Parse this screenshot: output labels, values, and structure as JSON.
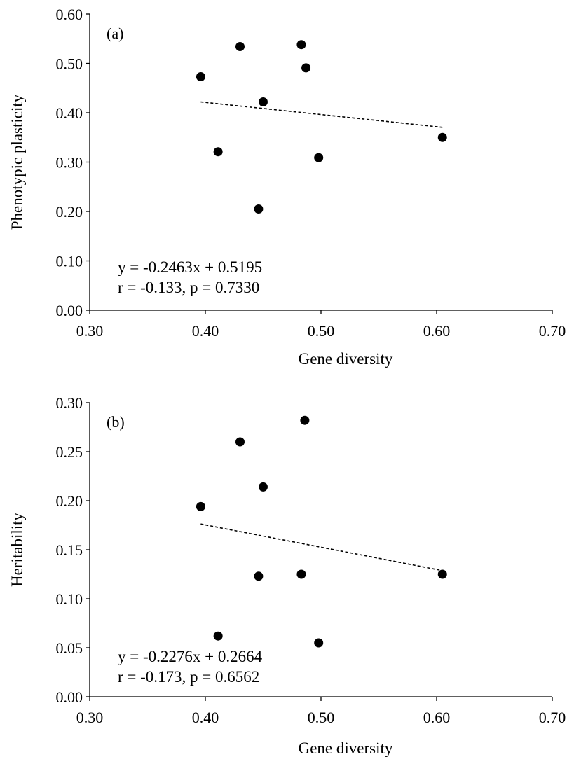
{
  "chart_data": [
    {
      "type": "scatter",
      "panel_label": "(a)",
      "xlabel": "Gene diversity",
      "ylabel": "Phenotypic plasticity",
      "xlim": [
        0.3,
        0.7
      ],
      "ylim": [
        0.0,
        0.6
      ],
      "x_ticks": [
        "0.30",
        "0.40",
        "0.50",
        "0.60",
        "0.70"
      ],
      "y_ticks": [
        "0.00",
        "0.10",
        "0.20",
        "0.30",
        "0.40",
        "0.50",
        "0.60"
      ],
      "x_tick_values": [
        0.3,
        0.4,
        0.5,
        0.6,
        0.7
      ],
      "y_tick_values": [
        0.0,
        0.1,
        0.2,
        0.3,
        0.4,
        0.5,
        0.6
      ],
      "points": [
        {
          "x": 0.396,
          "y": 0.473
        },
        {
          "x": 0.43,
          "y": 0.534
        },
        {
          "x": 0.483,
          "y": 0.538
        },
        {
          "x": 0.487,
          "y": 0.491
        },
        {
          "x": 0.45,
          "y": 0.422
        },
        {
          "x": 0.605,
          "y": 0.35
        },
        {
          "x": 0.411,
          "y": 0.321
        },
        {
          "x": 0.498,
          "y": 0.309
        },
        {
          "x": 0.446,
          "y": 0.205
        }
      ],
      "trendline": {
        "slope": -0.2463,
        "intercept": 0.5195,
        "x_range": [
          0.396,
          0.605
        ]
      },
      "annotation": [
        "y = -0.2463x + 0.5195",
        "r = -0.133, p = 0.7330"
      ],
      "grid": false
    },
    {
      "type": "scatter",
      "panel_label": "(b)",
      "xlabel": "Gene diversity",
      "ylabel": "Heritability",
      "xlim": [
        0.3,
        0.7
      ],
      "ylim": [
        0.0,
        0.3
      ],
      "x_ticks": [
        "0.30",
        "0.40",
        "0.50",
        "0.60",
        "0.70"
      ],
      "y_ticks": [
        "0.00",
        "0.05",
        "0.10",
        "0.15",
        "0.20",
        "0.25",
        "0.30"
      ],
      "x_tick_values": [
        0.3,
        0.4,
        0.5,
        0.6,
        0.7
      ],
      "y_tick_values": [
        0.0,
        0.05,
        0.1,
        0.15,
        0.2,
        0.25,
        0.3
      ],
      "points": [
        {
          "x": 0.486,
          "y": 0.282
        },
        {
          "x": 0.43,
          "y": 0.26
        },
        {
          "x": 0.45,
          "y": 0.214
        },
        {
          "x": 0.396,
          "y": 0.194
        },
        {
          "x": 0.446,
          "y": 0.123
        },
        {
          "x": 0.483,
          "y": 0.125
        },
        {
          "x": 0.605,
          "y": 0.125
        },
        {
          "x": 0.411,
          "y": 0.062
        },
        {
          "x": 0.498,
          "y": 0.055
        }
      ],
      "trendline": {
        "slope": -0.2276,
        "intercept": 0.2664,
        "x_range": [
          0.396,
          0.605
        ]
      },
      "annotation": [
        "y = -0.2276x + 0.2664",
        "r = -0.173, p = 0.6562"
      ],
      "grid": false
    }
  ]
}
